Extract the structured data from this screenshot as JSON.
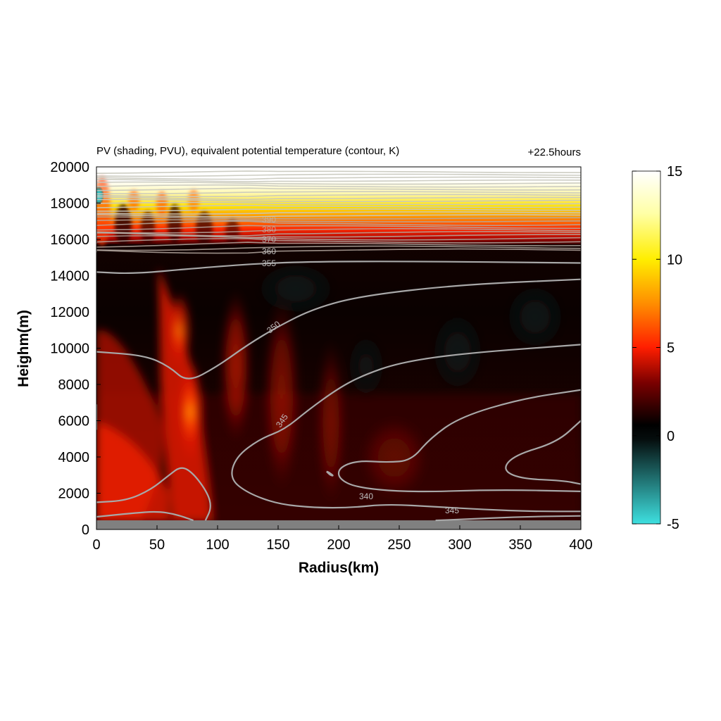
{
  "chart_data": {
    "type": "heatmap",
    "title": "PV (shading, PVU), equivalent potential temperature (contour, K)",
    "time_label": "+22.5hours",
    "xlabel": "Radius(km)",
    "ylabel": "Heighm(m)",
    "xlim": [
      0,
      400
    ],
    "ylim": [
      0,
      20000
    ],
    "xticks": [
      "0",
      "50",
      "100",
      "150",
      "200",
      "250",
      "300",
      "350",
      "400"
    ],
    "yticks": [
      "0",
      "2000",
      "4000",
      "6000",
      "8000",
      "10000",
      "12000",
      "14000",
      "16000",
      "18000",
      "20000"
    ],
    "colorbar": {
      "min": -5,
      "max": 15,
      "ticks": [
        "-5",
        "0",
        "5",
        "10",
        "15"
      ],
      "colors": [
        "#3ee0e0",
        "#000000",
        "#ff1e00",
        "#ffee00",
        "#ffffff"
      ]
    },
    "terrain_top_m": 500,
    "contour_labels": [
      "355",
      "350",
      "345",
      "340",
      "345",
      "360",
      "370",
      "380",
      "390"
    ],
    "contours": [
      {
        "name": "355",
        "points": [
          [
            0,
            14200
          ],
          [
            30,
            14100
          ],
          [
            80,
            14400
          ],
          [
            150,
            14750
          ],
          [
            250,
            14800
          ],
          [
            400,
            14700
          ]
        ]
      },
      {
        "name": "350",
        "points": [
          [
            0,
            9800
          ],
          [
            40,
            9600
          ],
          [
            60,
            9000
          ],
          [
            75,
            8100
          ],
          [
            100,
            9000
          ],
          [
            125,
            10200
          ],
          [
            150,
            11200
          ],
          [
            180,
            12200
          ],
          [
            220,
            12900
          ],
          [
            300,
            13500
          ],
          [
            400,
            13800
          ]
        ]
      },
      {
        "name": "345",
        "points": [
          [
            0,
            6900
          ],
          [
            0,
            5500
          ]
        ]
      },
      {
        "name": "345",
        "points": [
          [
            400,
            10200
          ],
          [
            300,
            9700
          ],
          [
            250,
            9200
          ],
          [
            220,
            8500
          ],
          [
            200,
            7800
          ],
          [
            175,
            6600
          ],
          [
            155,
            5500
          ],
          [
            135,
            5000
          ],
          [
            115,
            4000
          ],
          [
            110,
            2800
          ],
          [
            125,
            2000
          ],
          [
            150,
            1400
          ],
          [
            180,
            1200
          ],
          [
            210,
            1200
          ],
          [
            240,
            1400
          ],
          [
            280,
            1250
          ],
          [
            320,
            1100
          ],
          [
            360,
            1000
          ],
          [
            400,
            1000
          ]
        ]
      },
      {
        "name": "340",
        "points": [
          [
            400,
            7700
          ],
          [
            350,
            7200
          ],
          [
            300,
            6200
          ],
          [
            275,
            5000
          ],
          [
            260,
            3800
          ],
          [
            240,
            3700
          ],
          [
            215,
            3800
          ],
          [
            200,
            3400
          ],
          [
            200,
            2800
          ],
          [
            215,
            2300
          ],
          [
            260,
            2050
          ],
          [
            330,
            2200
          ],
          [
            400,
            2100
          ]
        ]
      },
      {
        "name": "340",
        "points": [
          [
            400,
            6000
          ],
          [
            380,
            4800
          ],
          [
            345,
            4100
          ],
          [
            335,
            3300
          ],
          [
            350,
            2800
          ],
          [
            385,
            2700
          ],
          [
            400,
            2500
          ]
        ]
      },
      {
        "name": "340",
        "points": [
          [
            190,
            3200
          ],
          [
            193,
            3000
          ],
          [
            196,
            2950
          ],
          [
            192,
            3150
          ],
          [
            190,
            3200
          ]
        ]
      },
      {
        "name": "340",
        "points": [
          [
            0,
            1500
          ],
          [
            25,
            1600
          ],
          [
            45,
            2200
          ],
          [
            60,
            3000
          ],
          [
            70,
            3500
          ],
          [
            80,
            3100
          ],
          [
            92,
            2000
          ],
          [
            95,
            1200
          ],
          [
            90,
            500
          ]
        ]
      },
      {
        "name": "340",
        "points": [
          [
            0,
            700
          ],
          [
            30,
            900
          ],
          [
            50,
            1000
          ],
          [
            65,
            850
          ],
          [
            80,
            500
          ]
        ]
      },
      {
        "name": "345",
        "points": [
          [
            280,
            500
          ],
          [
            300,
            550
          ],
          [
            350,
            700
          ],
          [
            400,
            750
          ]
        ]
      }
    ]
  }
}
